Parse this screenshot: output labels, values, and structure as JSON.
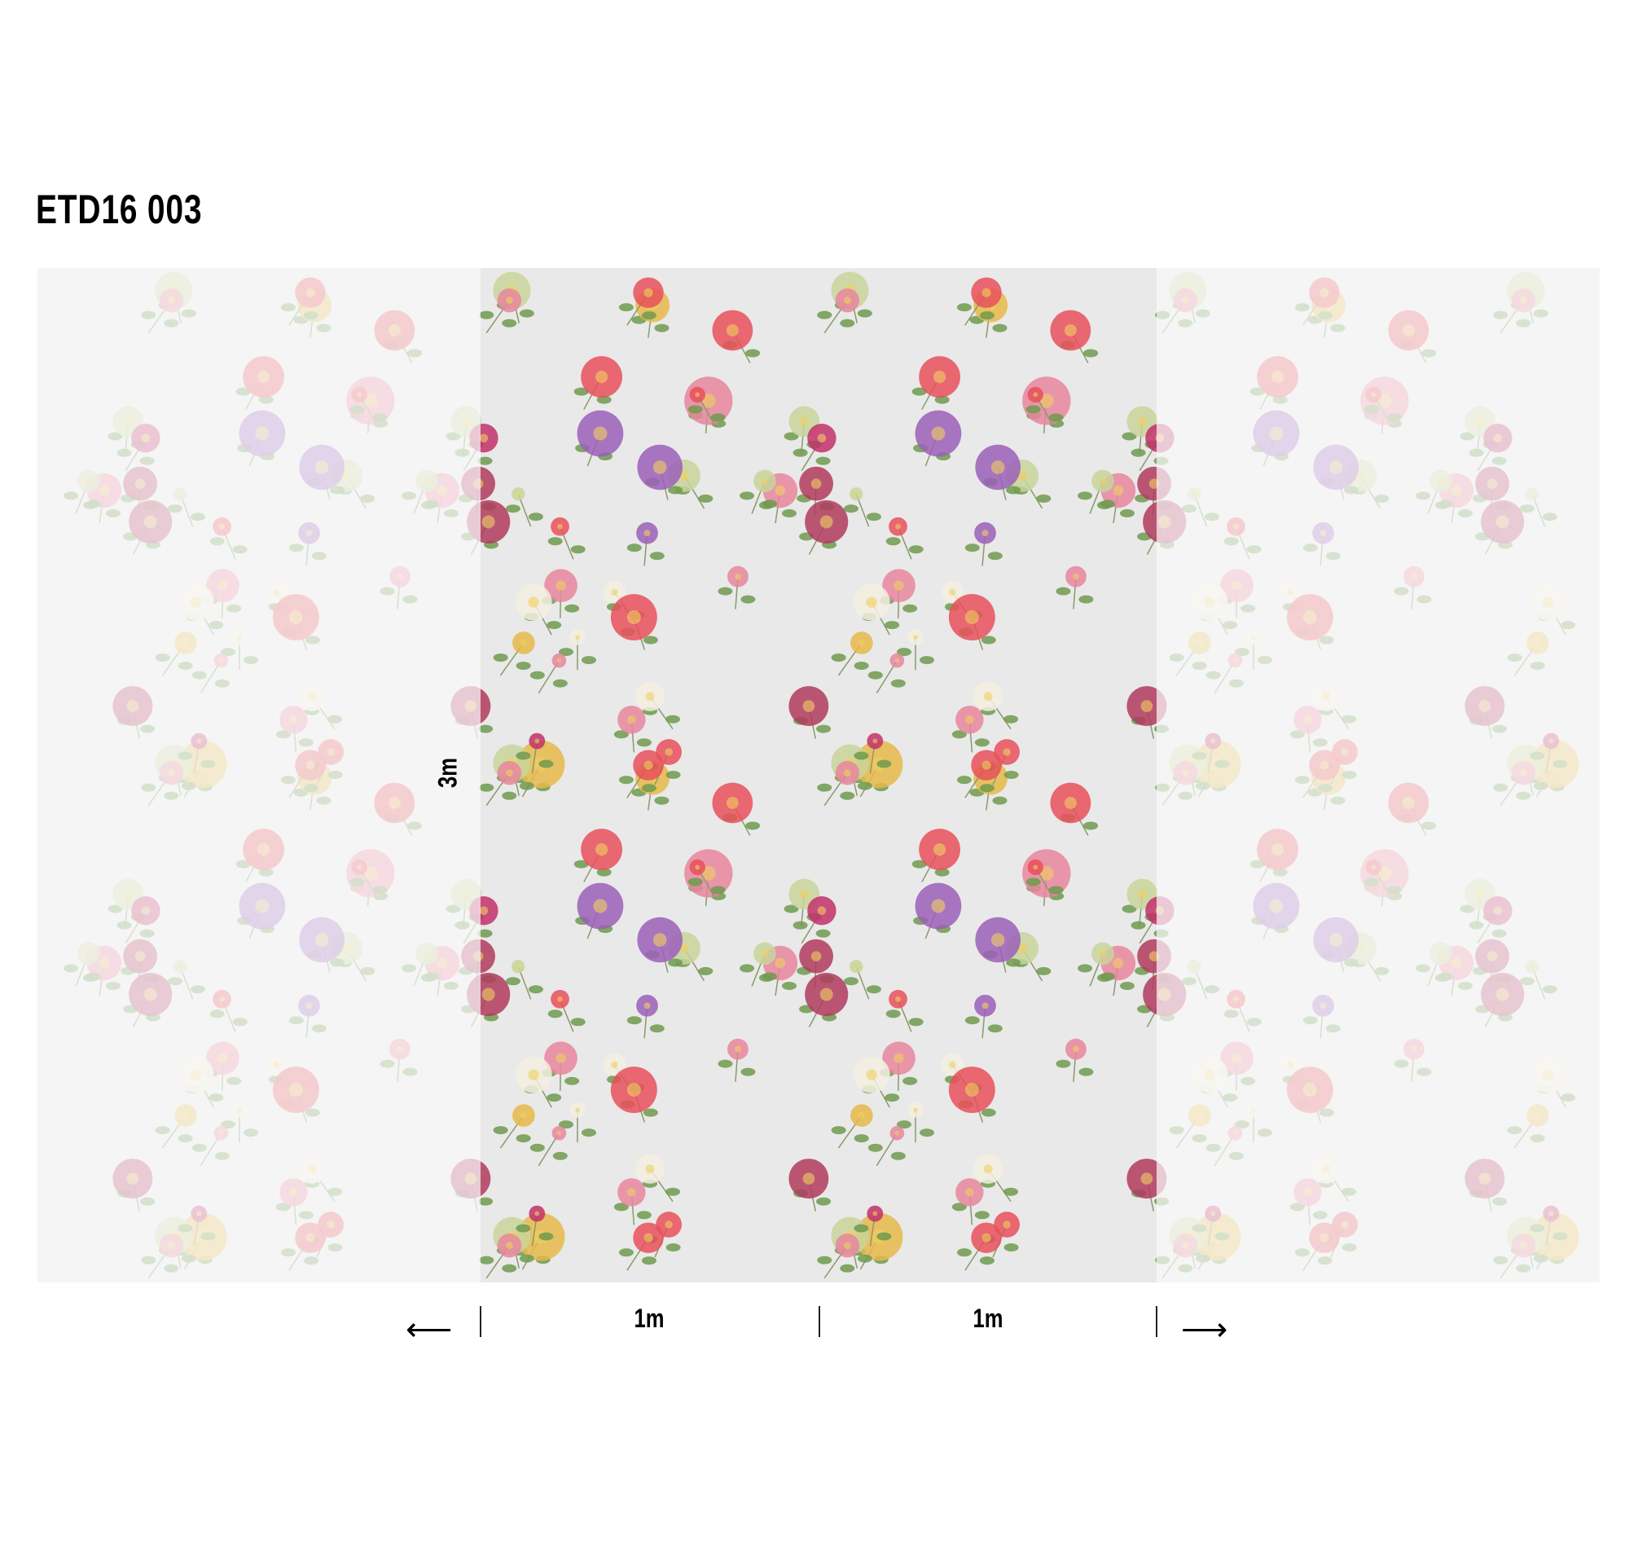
{
  "title": "ETD16 003",
  "dimensions": {
    "height_label": "3m",
    "width_labels": [
      "1m",
      "1m"
    ],
    "arrow_left": "⟵",
    "arrow_right": "⟶"
  },
  "pattern": {
    "name": "floral",
    "background": "#e9e9e9",
    "flower_colors": [
      "#9b5fb8",
      "#e8869e",
      "#e8505a",
      "#c8d59a",
      "#c2306a",
      "#f3efe0",
      "#b03b5e",
      "#e6b84a"
    ],
    "leaf_color": "#6f9a4e"
  }
}
